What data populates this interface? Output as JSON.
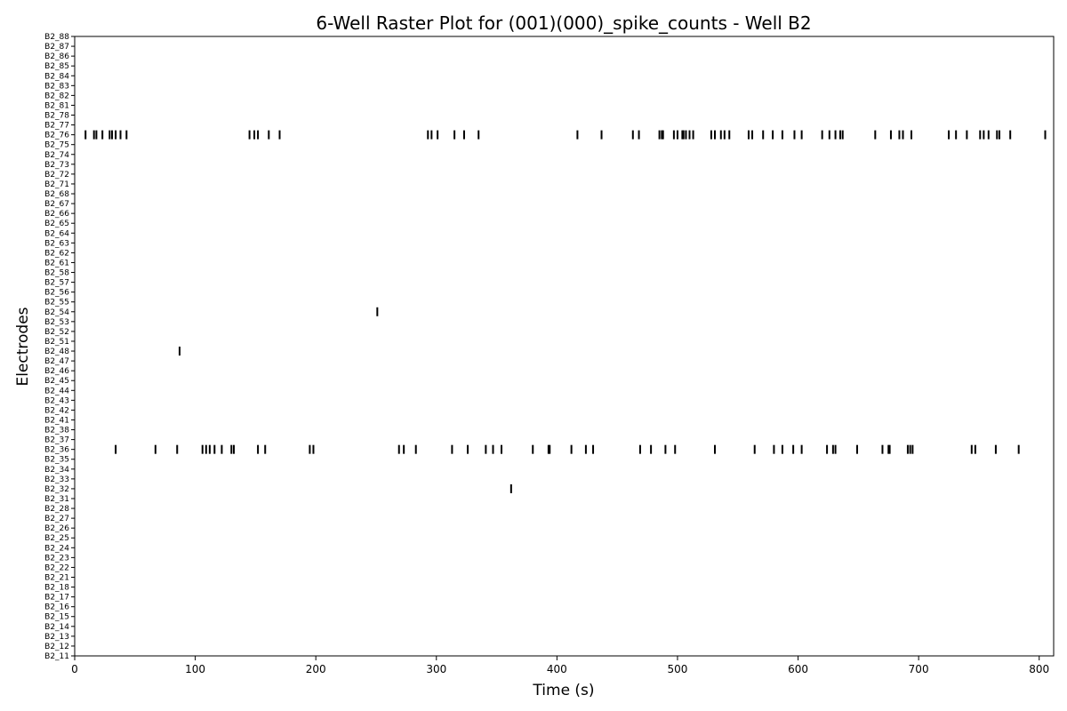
{
  "chart_data": {
    "type": "raster",
    "title": "6-Well Raster Plot for (001)(000)_spike_counts - Well B2",
    "xlabel": "Time (s)",
    "ylabel": "Electrodes",
    "xlim": [
      0,
      812
    ],
    "x_ticks": [
      0,
      100,
      200,
      300,
      400,
      500,
      600,
      700,
      800
    ],
    "grid": false,
    "color": "#000000",
    "electrodes": [
      "B2_11",
      "B2_12",
      "B2_13",
      "B2_14",
      "B2_15",
      "B2_16",
      "B2_17",
      "B2_18",
      "B2_21",
      "B2_22",
      "B2_23",
      "B2_24",
      "B2_25",
      "B2_26",
      "B2_27",
      "B2_28",
      "B2_31",
      "B2_32",
      "B2_33",
      "B2_34",
      "B2_35",
      "B2_36",
      "B2_37",
      "B2_38",
      "B2_41",
      "B2_42",
      "B2_43",
      "B2_44",
      "B2_45",
      "B2_46",
      "B2_47",
      "B2_48",
      "B2_51",
      "B2_52",
      "B2_53",
      "B2_54",
      "B2_55",
      "B2_56",
      "B2_57",
      "B2_58",
      "B2_61",
      "B2_62",
      "B2_63",
      "B2_64",
      "B2_65",
      "B2_66",
      "B2_67",
      "B2_68",
      "B2_71",
      "B2_72",
      "B2_73",
      "B2_74",
      "B2_75",
      "B2_76",
      "B2_77",
      "B2_78",
      "B2_81",
      "B2_82",
      "B2_83",
      "B2_84",
      "B2_85",
      "B2_86",
      "B2_87",
      "B2_88"
    ],
    "spikes": {
      "B2_76": [
        9,
        16,
        18,
        23,
        29,
        31,
        34,
        38,
        43,
        145,
        149,
        152,
        161,
        170,
        293,
        296,
        301,
        315,
        323,
        335,
        417,
        437,
        463,
        468,
        485,
        487,
        488,
        497,
        500,
        504,
        505,
        507,
        510,
        513,
        528,
        531,
        536,
        539,
        543,
        559,
        562,
        571,
        579,
        587,
        597,
        603,
        620,
        626,
        631,
        635,
        637,
        664,
        677,
        684,
        687,
        694,
        725,
        731,
        740,
        751,
        754,
        758,
        765,
        767,
        776,
        805
      ],
      "B2_54": [
        251
      ],
      "B2_48": [
        87
      ],
      "B2_36": [
        34,
        67,
        85,
        106,
        109,
        112,
        116,
        122,
        130,
        132,
        152,
        158,
        195,
        198,
        269,
        273,
        283,
        313,
        326,
        341,
        347,
        354,
        380,
        393,
        394,
        412,
        424,
        430,
        469,
        478,
        490,
        498,
        531,
        564,
        580,
        587,
        596,
        603,
        624,
        629,
        631,
        649,
        670,
        675,
        676,
        691,
        693,
        695,
        744,
        747,
        764,
        783
      ],
      "B2_32": [
        362
      ]
    }
  }
}
